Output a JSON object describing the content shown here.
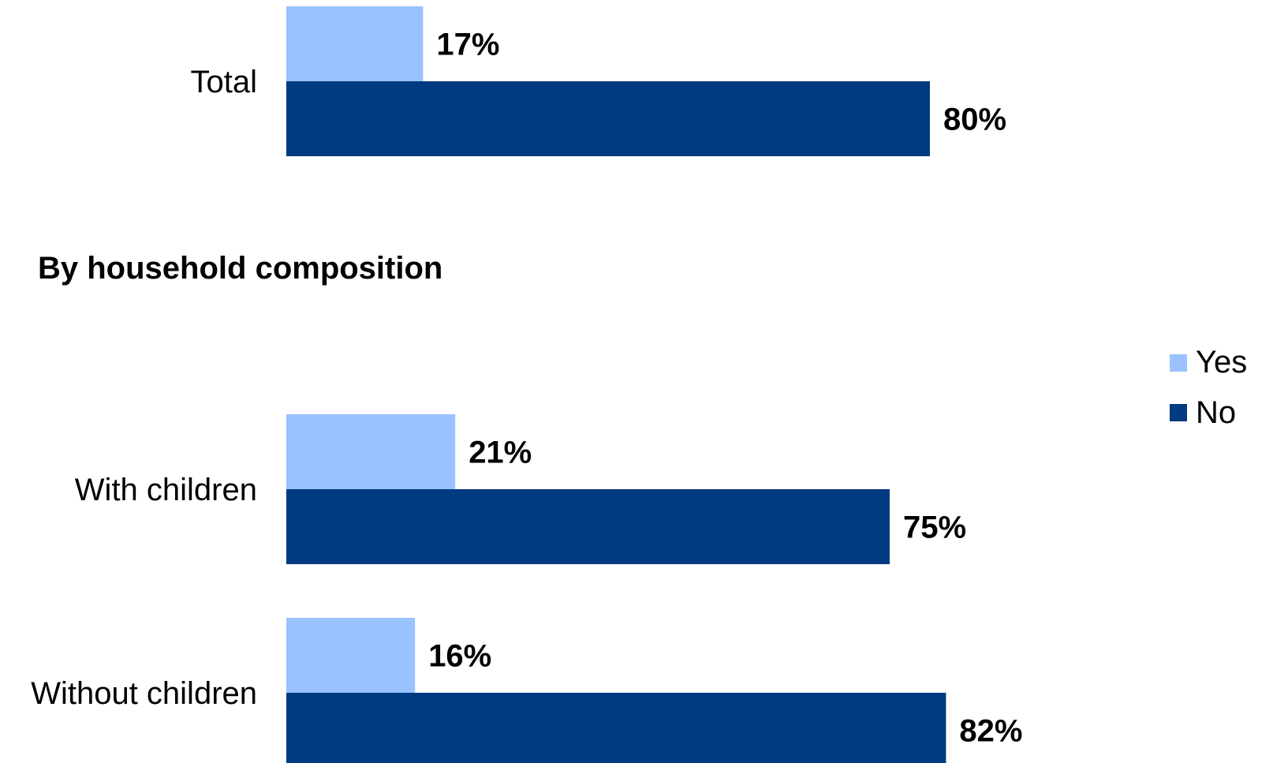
{
  "chart_data": {
    "type": "bar",
    "orientation": "horizontal",
    "section_heading": "By household composition",
    "categories": [
      "Total",
      "With children",
      "Without children"
    ],
    "series": [
      {
        "name": "Yes",
        "values": [
          17,
          21,
          16
        ],
        "color": "#99c2ff"
      },
      {
        "name": "No",
        "values": [
          80,
          75,
          82
        ],
        "color": "#003a80"
      }
    ],
    "value_labels": {
      "Yes": [
        "17%",
        "21%",
        "16%"
      ],
      "No": [
        "80%",
        "75%",
        "82%"
      ]
    },
    "xlim": [
      0,
      100
    ],
    "grid": false,
    "legend_position": "right",
    "xlabel": "",
    "ylabel": ""
  }
}
